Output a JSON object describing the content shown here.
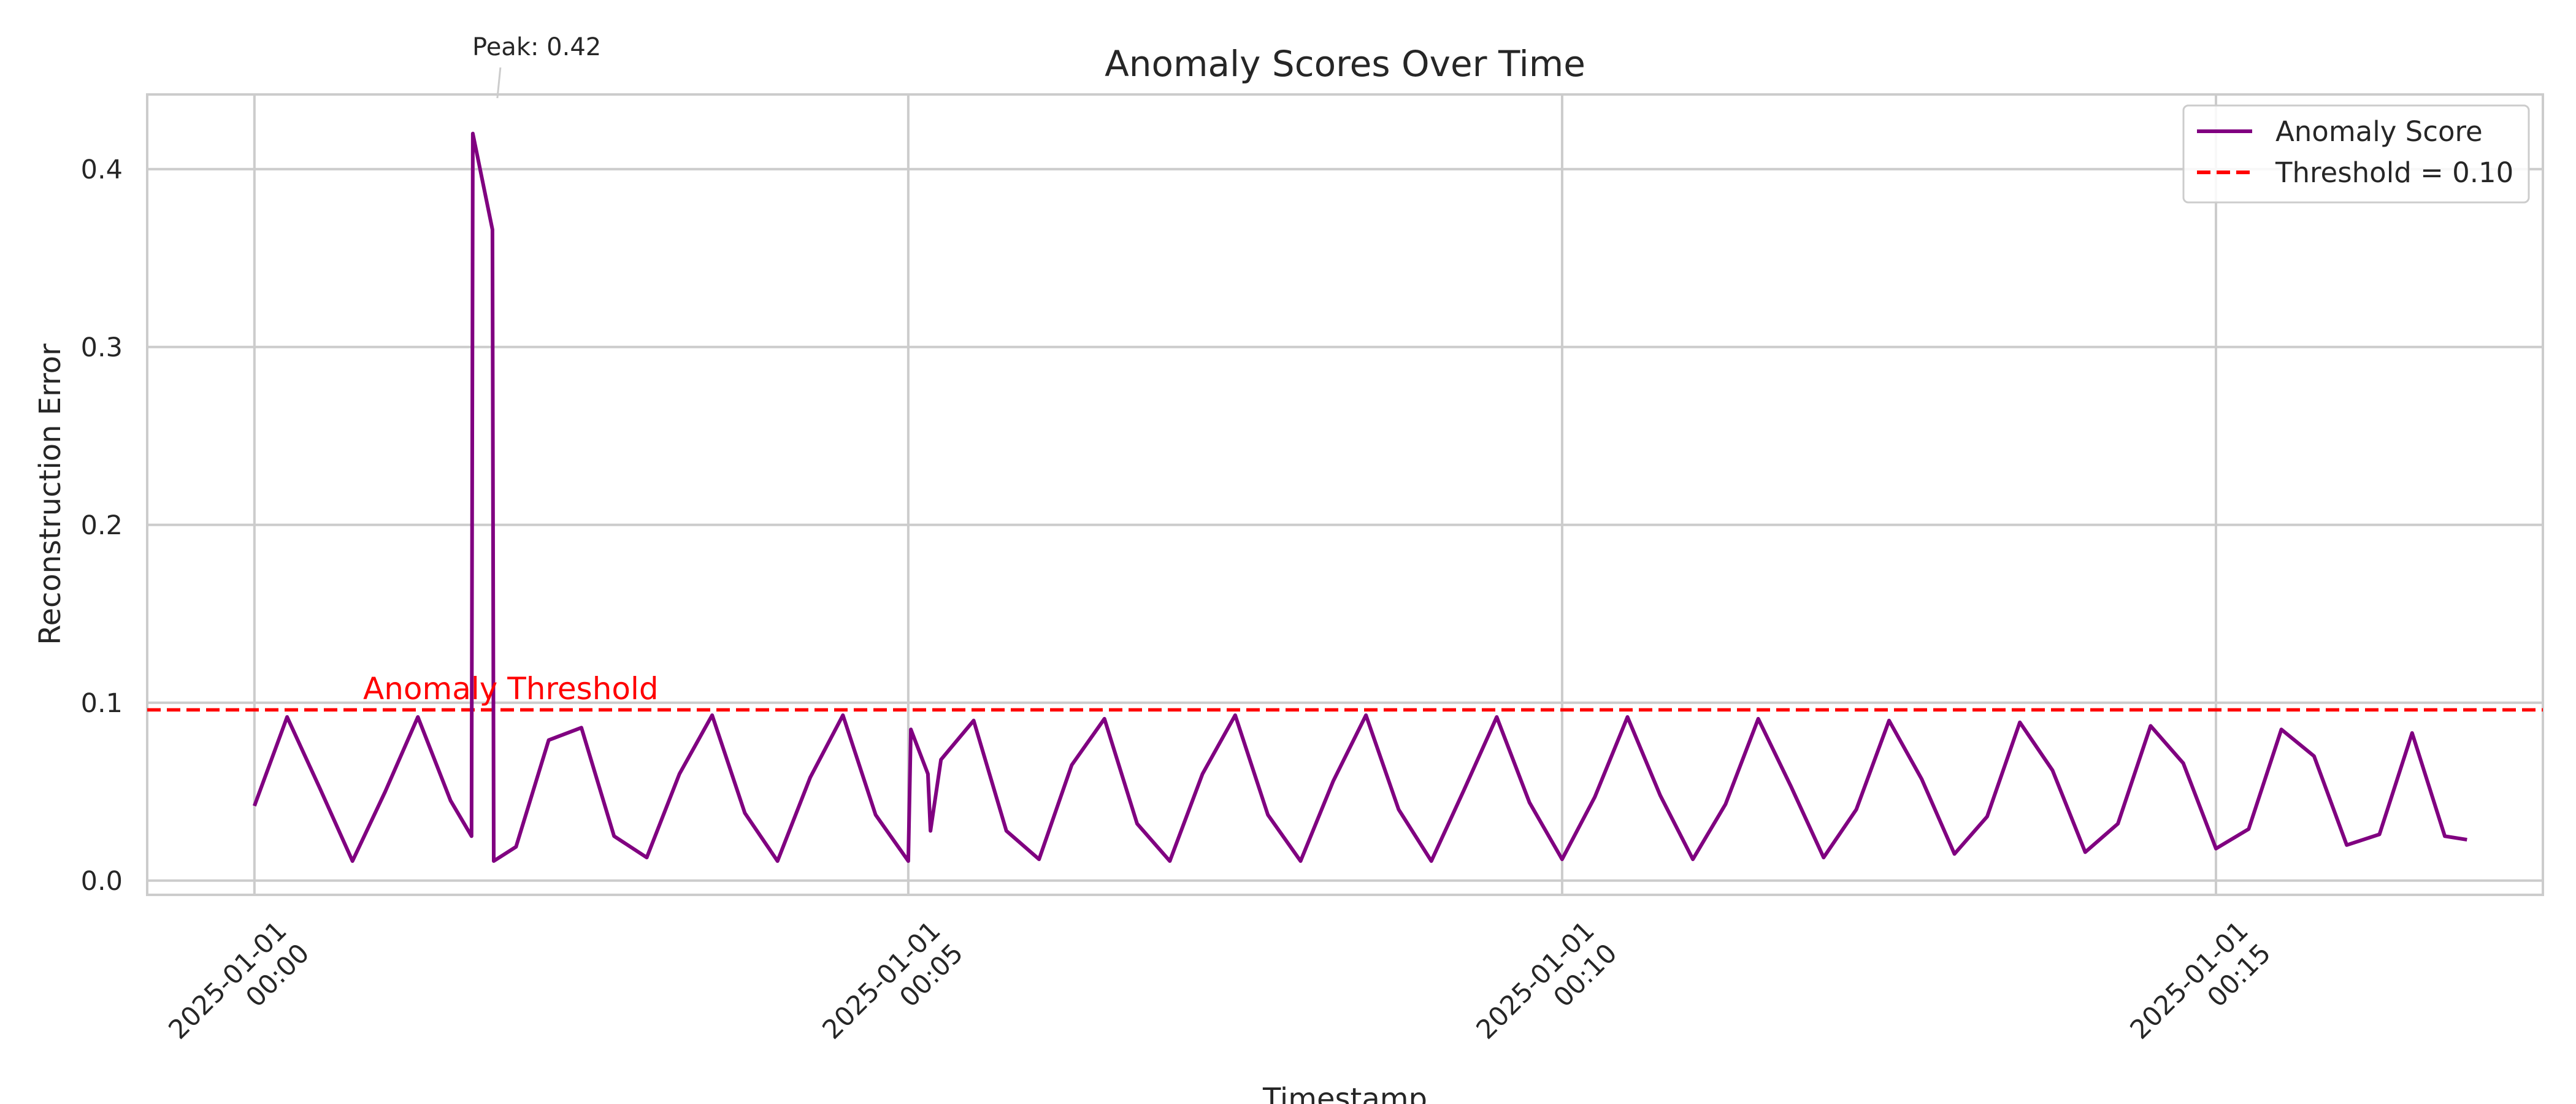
{
  "chart_data": {
    "type": "line",
    "title": "Anomaly Scores Over Time",
    "xlabel": "Timestamp",
    "ylabel": "Reconstruction Error",
    "x_unit": "minutes",
    "xlim": [
      -0.82,
      17.5
    ],
    "ylim": [
      -0.008,
      0.442
    ],
    "grid": true,
    "legend_position": "top-right",
    "x_ticks": [
      {
        "value": 0,
        "date": "2025-01-01",
        "time": "00:00"
      },
      {
        "value": 5,
        "date": "2025-01-01",
        "time": "00:05"
      },
      {
        "value": 10,
        "date": "2025-01-01",
        "time": "00:10"
      },
      {
        "value": 15,
        "date": "2025-01-01",
        "time": "00:15"
      }
    ],
    "y_ticks": [
      {
        "value": 0.0,
        "label": "0.0"
      },
      {
        "value": 0.1,
        "label": "0.1"
      },
      {
        "value": 0.2,
        "label": "0.2"
      },
      {
        "value": 0.3,
        "label": "0.3"
      },
      {
        "value": 0.4,
        "label": "0.4"
      }
    ],
    "series": [
      {
        "name": "Anomaly Score",
        "color": "#800080",
        "style": "solid",
        "x": [
          0.0,
          0.25,
          0.5,
          0.75,
          1.0,
          1.25,
          1.5,
          1.66,
          1.67,
          1.82,
          1.83,
          2.0,
          2.25,
          2.5,
          2.75,
          3.0,
          3.25,
          3.5,
          3.75,
          4.0,
          4.25,
          4.5,
          4.75,
          5.0,
          5.02,
          5.15,
          5.17,
          5.25,
          5.5,
          5.75,
          6.0,
          6.25,
          6.5,
          6.75,
          7.0,
          7.25,
          7.5,
          7.75,
          8.0,
          8.25,
          8.5,
          8.75,
          9.0,
          9.25,
          9.5,
          9.75,
          10.0,
          10.25,
          10.5,
          10.75,
          11.0,
          11.25,
          11.5,
          11.75,
          12.0,
          12.25,
          12.5,
          12.75,
          13.0,
          13.25,
          13.5,
          13.75,
          14.0,
          14.25,
          14.5,
          14.75,
          15.0,
          15.25,
          15.5,
          15.75,
          16.0,
          16.25,
          16.5,
          16.75,
          16.92
        ],
        "values": [
          0.042,
          0.092,
          0.052,
          0.011,
          0.05,
          0.092,
          0.045,
          0.025,
          0.42,
          0.366,
          0.011,
          0.019,
          0.079,
          0.086,
          0.025,
          0.013,
          0.06,
          0.093,
          0.038,
          0.011,
          0.058,
          0.093,
          0.037,
          0.011,
          0.085,
          0.06,
          0.028,
          0.068,
          0.09,
          0.028,
          0.012,
          0.065,
          0.091,
          0.032,
          0.011,
          0.06,
          0.093,
          0.037,
          0.011,
          0.056,
          0.093,
          0.04,
          0.011,
          0.051,
          0.092,
          0.044,
          0.012,
          0.047,
          0.092,
          0.048,
          0.012,
          0.043,
          0.091,
          0.053,
          0.013,
          0.04,
          0.09,
          0.057,
          0.015,
          0.036,
          0.089,
          0.062,
          0.016,
          0.032,
          0.087,
          0.066,
          0.018,
          0.029,
          0.085,
          0.07,
          0.02,
          0.026,
          0.083,
          0.025,
          0.023
        ]
      },
      {
        "name": "Threshold = 0.10",
        "color": "#ff0000",
        "style": "dashed",
        "constant": 0.096
      }
    ],
    "annotations": [
      {
        "text": "Peak: 0.42",
        "x": 1.67,
        "y": 0.42
      },
      {
        "text": "Anomaly Threshold",
        "x": 1.25,
        "y": 0.096
      }
    ]
  }
}
